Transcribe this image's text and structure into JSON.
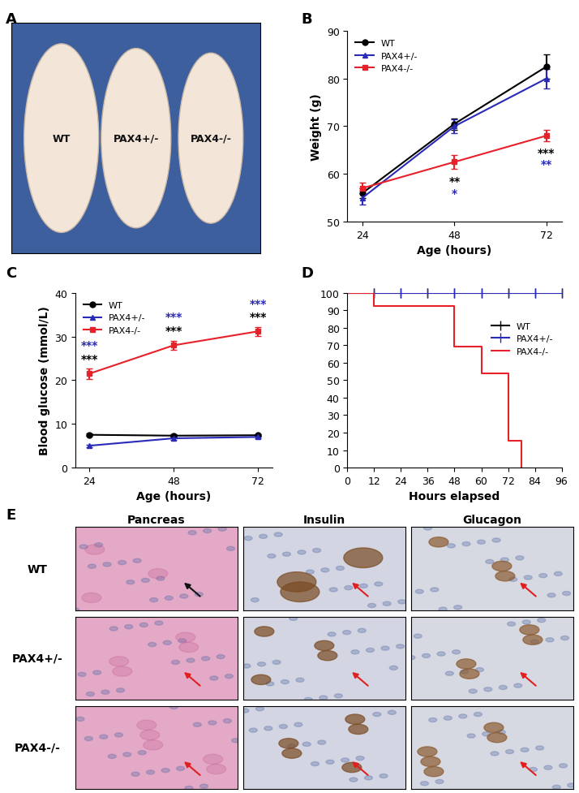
{
  "chart_data": [
    {
      "panel": "B",
      "type": "line",
      "x_label": "Age (hours)",
      "y_label": "Weight (g)",
      "x": [
        24,
        48,
        72
      ],
      "xlim": [
        20,
        76
      ],
      "xticks": [
        24,
        48,
        72
      ],
      "ylim": [
        50,
        90
      ],
      "yticks": [
        50,
        60,
        70,
        80,
        90
      ],
      "legend": "upper left",
      "series": [
        {
          "name": "WT",
          "color": "#000000",
          "marker": "o",
          "values": [
            56,
            70.5,
            82.5
          ],
          "errors": [
            1,
            1.2,
            2.5
          ]
        },
        {
          "name": "PAX4+/-",
          "color": "#2a2ab8",
          "marker": "^",
          "values": [
            55,
            70,
            80
          ],
          "errors": [
            1.5,
            1.5,
            2
          ]
        },
        {
          "name": "PAX4-/-",
          "color": "#e8202a",
          "marker": "s",
          "values": [
            57,
            62.5,
            68
          ],
          "errors": [
            1.2,
            1.5,
            1.2
          ]
        }
      ],
      "annotations": [
        {
          "x": 48,
          "y": 58.5,
          "text": "**",
          "color": "#000000"
        },
        {
          "x": 48,
          "y": 56,
          "text": "*",
          "color": "#2a2ab8"
        },
        {
          "x": 72,
          "y": 64.5,
          "text": "***",
          "color": "#000000"
        },
        {
          "x": 72,
          "y": 62,
          "text": "**",
          "color": "#2a2ab8"
        }
      ]
    },
    {
      "panel": "C",
      "type": "line",
      "x_label": "Age (hours)",
      "y_label": "Blood glucose (mmol/L)",
      "x": [
        24,
        48,
        72
      ],
      "xlim": [
        20,
        76
      ],
      "xticks": [
        24,
        48,
        72
      ],
      "ylim": [
        0,
        40
      ],
      "yticks": [
        0,
        10,
        20,
        30,
        40
      ],
      "legend": "upper left",
      "series": [
        {
          "name": "WT",
          "color": "#000000",
          "marker": "o",
          "values": [
            7.5,
            7.3,
            7.4
          ],
          "errors": [
            0.3,
            0.3,
            0.3
          ]
        },
        {
          "name": "PAX4+/-",
          "color": "#2a2ab8",
          "marker": "^",
          "values": [
            5,
            6.7,
            7
          ],
          "errors": [
            0.3,
            0.3,
            0.3
          ]
        },
        {
          "name": "PAX4-/-",
          "color": "#e8202a",
          "marker": "s",
          "values": [
            21.5,
            28,
            31.2
          ],
          "errors": [
            1.2,
            1,
            1
          ]
        }
      ],
      "annotations": [
        {
          "x": 24,
          "y": 25,
          "text": "***",
          "color": "#000000"
        },
        {
          "x": 24,
          "y": 28,
          "text": "***",
          "color": "#2a2ab8"
        },
        {
          "x": 48,
          "y": 31.5,
          "text": "***",
          "color": "#000000"
        },
        {
          "x": 48,
          "y": 34.5,
          "text": "***",
          "color": "#2a2ab8"
        },
        {
          "x": 72,
          "y": 34.5,
          "text": "***",
          "color": "#000000"
        },
        {
          "x": 72,
          "y": 37.5,
          "text": "***",
          "color": "#2a2ab8"
        }
      ]
    },
    {
      "panel": "D",
      "type": "step",
      "x_label": "Hours elapsed",
      "xlim": [
        0,
        96
      ],
      "xticks": [
        0,
        12,
        24,
        36,
        48,
        60,
        72,
        84,
        96
      ],
      "ylim": [
        0,
        100
      ],
      "yticks": [
        0,
        10,
        20,
        30,
        40,
        50,
        60,
        70,
        80,
        90,
        100
      ],
      "legend": "upper right",
      "series": [
        {
          "name": "WT",
          "color": "#000000",
          "marker": "|",
          "x": [
            0,
            96
          ],
          "values": [
            100,
            100
          ],
          "censored": [
            12,
            24,
            36,
            48,
            60,
            72,
            84,
            96
          ]
        },
        {
          "name": "PAX4+/-",
          "color": "#2a2ab8",
          "marker": "|",
          "x": [
            0,
            96
          ],
          "values": [
            100,
            100
          ],
          "censored": [
            12,
            24,
            36,
            48,
            60,
            72,
            84,
            96
          ]
        },
        {
          "name": "PAX4-/-",
          "color": "#e8202a",
          "x": [
            0,
            12,
            48,
            60,
            72,
            78
          ],
          "values": [
            100,
            92.3,
            69.2,
            53.8,
            15.4,
            0
          ]
        }
      ]
    }
  ],
  "photo": {
    "panel": "A",
    "labels": [
      "WT",
      "PAX4+/-",
      "PAX4-/-"
    ]
  },
  "histology": {
    "panel": "E",
    "columns": [
      "Pancreas",
      "Insulin",
      "Glucagon"
    ],
    "rows": [
      "WT",
      "PAX4+/-",
      "PAX4-/-"
    ]
  }
}
